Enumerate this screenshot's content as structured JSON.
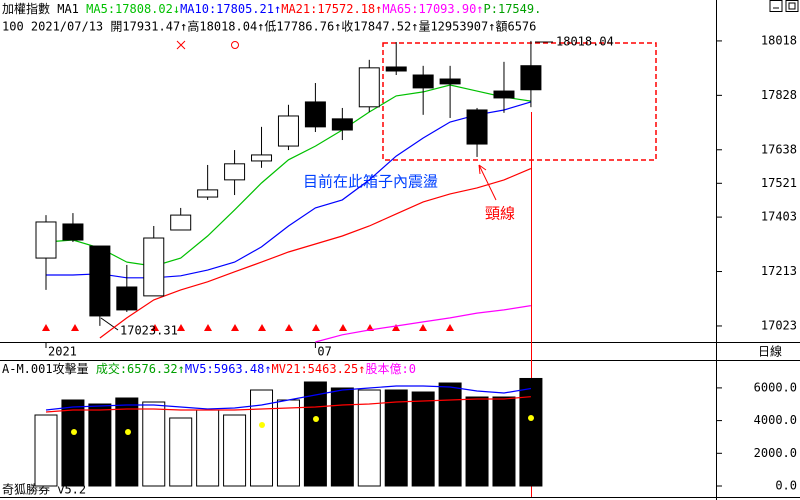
{
  "chart_data": [
    {
      "type": "candlestick",
      "title": "加權指數 MA1",
      "indicator": "P:17549.",
      "info": "100 2021/07/13 開17931.47↑高18018.04↑低17786.76↑收17847.52↑量12953907↑額6576",
      "period": "日線",
      "categories": [
        "2021",
        null,
        null,
        null,
        null,
        null,
        null,
        null,
        null,
        null,
        "07",
        null,
        null,
        null,
        null,
        null,
        null,
        null,
        null
      ],
      "open": [
        17260,
        17379,
        17302,
        17159,
        17128,
        17358,
        17473,
        17533,
        17599,
        17651,
        17805,
        17746,
        17788,
        17927,
        17899,
        17885,
        17777,
        17843,
        17931.47
      ],
      "high": [
        17410,
        17417,
        17302,
        17236,
        17372,
        17435,
        17585,
        17637,
        17718,
        17795,
        17871,
        17784,
        17952,
        18014,
        17931,
        17931,
        17784,
        17945,
        18018.04
      ],
      "low": [
        17149,
        17316,
        17023.31,
        17072,
        17128,
        17358,
        17463,
        17480,
        17575,
        17637,
        17700,
        17672,
        17770,
        17899,
        17760,
        17749,
        17613,
        17767,
        17786.76
      ],
      "close": [
        17386,
        17323,
        17058,
        17079,
        17330,
        17410,
        17498,
        17589,
        17620,
        17756,
        17718,
        17707,
        17924,
        17913,
        17854,
        17868,
        17658,
        17819,
        17847.52
      ],
      "series": [
        {
          "name": "MA5:17808.02↓",
          "color": "#00c000",
          "values": [
            17316,
            17323,
            17295,
            17246,
            17232,
            17260,
            17337,
            17428,
            17522,
            17603,
            17651,
            17707,
            17770,
            17826,
            17840,
            17864,
            17843,
            17822,
            17808.02
          ]
        },
        {
          "name": "MA10:17805.21↑",
          "color": "#0000ff",
          "values": [
            17201,
            17201,
            17205,
            17191,
            17191,
            17198,
            17218,
            17246,
            17299,
            17372,
            17435,
            17463,
            17533,
            17616,
            17679,
            17735,
            17760,
            17777,
            17805.21
          ]
        },
        {
          "name": "MA21:17572.18↑",
          "color": "#ff0000",
          "values": [
            null,
            null,
            16981,
            17051,
            17114,
            17149,
            17177,
            17212,
            17246,
            17281,
            17309,
            17337,
            17372,
            17414,
            17456,
            17484,
            17505,
            17533,
            17572.18
          ]
        },
        {
          "name": "MA65:17093.90↑",
          "color": "#ff00ff",
          "values": [
            null,
            null,
            null,
            null,
            null,
            null,
            null,
            null,
            null,
            null,
            16967,
            16992,
            17009,
            17023,
            17037,
            17051,
            17068,
            17079,
            17093.9
          ]
        }
      ],
      "ylim": [
        16967,
        18098
      ],
      "yticks": [
        17023,
        17213,
        17403,
        17521,
        17638,
        17828,
        18018
      ],
      "annotations": [
        "18018.04",
        "17023.31",
        "目前在此箱子內震盪",
        "頸線"
      ]
    },
    {
      "type": "bar",
      "title": "A-M.001攻擊量",
      "extra": "股本億:0",
      "series": [
        {
          "name": "成交:6576.32↑",
          "type": "bar",
          "values": [
            4342,
            5260,
            5015,
            5382,
            5137,
            4159,
            4648,
            4342,
            5871,
            5260,
            6361,
            5994,
            5871,
            5871,
            5749,
            6299,
            5443,
            5443,
            6576.32
          ]
        },
        {
          "name": "MV5:5963.48↑",
          "type": "line",
          "color": "#0000ff",
          "values": [
            4648,
            4832,
            4893,
            4954,
            4954,
            4832,
            4709,
            4770,
            4954,
            5260,
            5566,
            5871,
            5994,
            6116,
            6116,
            6055,
            5810,
            5688,
            5963.48
          ]
        },
        {
          "name": "MV21:5463.25↑",
          "type": "line",
          "color": "#ff0000",
          "values": [
            4526,
            4648,
            4648,
            4709,
            4709,
            4648,
            4648,
            4648,
            4709,
            4770,
            4832,
            4954,
            5015,
            5137,
            5198,
            5260,
            5321,
            5321,
            5463.25
          ]
        }
      ],
      "ylim": [
        -673,
        7584
      ],
      "yticks": [
        {
          "value": 0,
          "label": "0.0"
        },
        {
          "value": 2000,
          "label": "2000.0"
        },
        {
          "value": 4000,
          "label": "4000.0"
        },
        {
          "value": 6000,
          "label": "6000.0"
        }
      ]
    }
  ],
  "footer": "奇狐勝券 v5.2"
}
